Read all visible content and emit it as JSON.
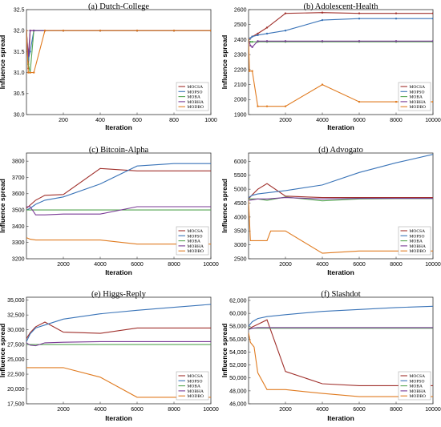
{
  "colors": {
    "MOCSA": "#a0302c",
    "MOPSO": "#3a74b8",
    "MOBA": "#55a552",
    "MOBHA": "#7a3b96",
    "MODBO": "#e07b20"
  },
  "chart_data": [
    {
      "type": "line",
      "title": "(a) Dutch-College",
      "xlabel": "Iteration",
      "ylabel": "Influence spread",
      "xlim": [
        0,
        1000
      ],
      "ylim": [
        30,
        32.5
      ],
      "xticks": [
        200,
        400,
        600,
        800,
        1000
      ],
      "yticks": [
        30.0,
        30.5,
        31.0,
        31.5,
        32.0,
        32.5
      ],
      "ytick_labels": [
        "30.0",
        "30.5",
        "31.0",
        "31.5",
        "32.0",
        "32.5"
      ],
      "markers": true,
      "legend": "bottom-right",
      "series": [
        {
          "name": "MOCSA",
          "x": [
            0,
            10,
            20,
            40,
            100,
            200,
            400,
            600,
            800,
            1000
          ],
          "y": [
            32,
            31.1,
            32,
            32,
            32,
            32,
            32,
            32,
            32,
            32
          ]
        },
        {
          "name": "MOPSO",
          "x": [
            0,
            10,
            20,
            40,
            100,
            200,
            400,
            600,
            800,
            1000
          ],
          "y": [
            32,
            31.3,
            31.5,
            32,
            32,
            32,
            32,
            32,
            32,
            32
          ]
        },
        {
          "name": "MOBA",
          "x": [
            0,
            10,
            20,
            40,
            100,
            200,
            400,
            600,
            800,
            1000
          ],
          "y": [
            32,
            31.2,
            31.0,
            32,
            32,
            32,
            32,
            32,
            32,
            32
          ]
        },
        {
          "name": "MOBHA",
          "x": [
            0,
            10,
            20,
            40,
            100,
            200,
            400,
            600,
            800,
            1000
          ],
          "y": [
            32,
            31.4,
            32,
            32,
            32,
            32,
            32,
            32,
            32,
            32
          ]
        },
        {
          "name": "MODBO",
          "x": [
            0,
            10,
            20,
            40,
            100,
            200,
            400,
            600,
            800,
            1000
          ],
          "y": [
            32,
            31.0,
            31.0,
            31.0,
            32,
            32,
            32,
            32,
            32,
            32
          ]
        }
      ]
    },
    {
      "type": "line",
      "title": "(b) Adolescent-Health",
      "xlabel": "Iteration",
      "ylabel": "Influence spread",
      "xlim": [
        0,
        10000
      ],
      "ylim": [
        1900,
        2600
      ],
      "xticks": [
        2000,
        4000,
        6000,
        8000,
        10000
      ],
      "yticks": [
        1900,
        2000,
        2100,
        2200,
        2300,
        2400,
        2500,
        2600
      ],
      "ytick_labels": [
        "1900",
        "2000",
        "2100",
        "2200",
        "2300",
        "2400",
        "2500",
        "2600"
      ],
      "markers": true,
      "legend": "bottom-right",
      "series": [
        {
          "name": "MOCSA",
          "x": [
            0,
            100,
            200,
            500,
            1000,
            2000,
            4000,
            6000,
            8000,
            10000
          ],
          "y": [
            2400,
            2410,
            2420,
            2440,
            2480,
            2575,
            2580,
            2575,
            2575,
            2575
          ]
        },
        {
          "name": "MOPSO",
          "x": [
            0,
            100,
            200,
            500,
            1000,
            2000,
            4000,
            6000,
            8000,
            10000
          ],
          "y": [
            2400,
            2410,
            2420,
            2430,
            2440,
            2460,
            2530,
            2540,
            2540,
            2540
          ]
        },
        {
          "name": "MOBA",
          "x": [
            0,
            100,
            200,
            500,
            1000,
            2000,
            4000,
            6000,
            8000,
            10000
          ],
          "y": [
            2390,
            2385,
            2385,
            2385,
            2385,
            2385,
            2385,
            2385,
            2385,
            2385
          ]
        },
        {
          "name": "MOBHA",
          "x": [
            0,
            100,
            200,
            500,
            1000,
            2000,
            4000,
            6000,
            8000,
            10000
          ],
          "y": [
            2400,
            2360,
            2350,
            2390,
            2390,
            2390,
            2390,
            2390,
            2390,
            2390
          ]
        },
        {
          "name": "MODBO",
          "x": [
            0,
            50,
            200,
            500,
            1000,
            2000,
            4000,
            6000,
            8000,
            10000
          ],
          "y": [
            2400,
            2190,
            2190,
            1955,
            1955,
            1955,
            2100,
            1985,
            1985,
            1985
          ]
        }
      ]
    },
    {
      "type": "line",
      "title": "(c) Bitcoin-Alpha",
      "xlabel": "Iteration",
      "ylabel": "Influence spread",
      "xlim": [
        0,
        10000
      ],
      "ylim": [
        3200,
        3850
      ],
      "xticks": [
        2000,
        4000,
        6000,
        8000,
        10000
      ],
      "yticks": [
        3200,
        3300,
        3400,
        3500,
        3600,
        3700,
        3800
      ],
      "ytick_labels": [
        "3200",
        "3300",
        "3400",
        "3500",
        "3600",
        "3700",
        "3800"
      ],
      "markers": false,
      "legend": "bottom-right",
      "series": [
        {
          "name": "MOCSA",
          "x": [
            0,
            200,
            500,
            1000,
            2000,
            4000,
            6000,
            8000,
            10000
          ],
          "y": [
            3510,
            3530,
            3560,
            3590,
            3595,
            3755,
            3740,
            3740,
            3740
          ]
        },
        {
          "name": "MOPSO",
          "x": [
            0,
            200,
            500,
            1000,
            2000,
            4000,
            6000,
            8000,
            10000
          ],
          "y": [
            3500,
            3510,
            3535,
            3560,
            3580,
            3660,
            3770,
            3785,
            3785
          ]
        },
        {
          "name": "MOBA",
          "x": [
            0,
            200,
            500,
            1000,
            2000,
            4000,
            6000,
            8000,
            10000
          ],
          "y": [
            3500,
            3500,
            3500,
            3500,
            3500,
            3500,
            3500,
            3500,
            3500
          ]
        },
        {
          "name": "MOBHA",
          "x": [
            0,
            200,
            500,
            1000,
            2000,
            4000,
            6000,
            8000,
            10000
          ],
          "y": [
            3520,
            3520,
            3470,
            3470,
            3475,
            3475,
            3520,
            3520,
            3520
          ]
        },
        {
          "name": "MODBO",
          "x": [
            0,
            200,
            500,
            1000,
            2000,
            4000,
            6000,
            8000,
            10000
          ],
          "y": [
            3330,
            3320,
            3315,
            3315,
            3315,
            3315,
            3290,
            3290,
            3290
          ]
        }
      ]
    },
    {
      "type": "line",
      "title": "(d) Advogato",
      "xlabel": "Iteration",
      "ylabel": "Influence spread",
      "xlim": [
        0,
        10000
      ],
      "ylim": [
        2500,
        6300
      ],
      "xticks": [
        2000,
        4000,
        6000,
        8000,
        10000
      ],
      "yticks": [
        2500,
        3000,
        3500,
        4000,
        4500,
        5000,
        5500,
        6000
      ],
      "ytick_labels": [
        "2500",
        "3000",
        "3500",
        "4000",
        "4500",
        "5000",
        "5500",
        "6000"
      ],
      "markers": false,
      "legend": "bottom-right",
      "series": [
        {
          "name": "MOCSA",
          "x": [
            0,
            200,
            500,
            1000,
            2000,
            4000,
            6000,
            8000,
            10000
          ],
          "y": [
            4650,
            4800,
            5000,
            5200,
            4750,
            4700,
            4700,
            4700,
            4700
          ]
        },
        {
          "name": "MOPSO",
          "x": [
            0,
            200,
            500,
            1000,
            2000,
            4000,
            6000,
            8000,
            10000
          ],
          "y": [
            4700,
            4780,
            4830,
            4870,
            4950,
            5150,
            5600,
            5950,
            6250
          ]
        },
        {
          "name": "MOBA",
          "x": [
            0,
            200,
            500,
            1000,
            2000,
            4000,
            6000,
            8000,
            10000
          ],
          "y": [
            4650,
            4650,
            4650,
            4600,
            4720,
            4580,
            4650,
            4660,
            4660
          ]
        },
        {
          "name": "MOBHA",
          "x": [
            0,
            200,
            500,
            1000,
            2000,
            4000,
            6000,
            8000,
            10000
          ],
          "y": [
            4600,
            4620,
            4650,
            4650,
            4700,
            4650,
            4670,
            4670,
            4670
          ]
        },
        {
          "name": "MODBO",
          "x": [
            0,
            100,
            200,
            1000,
            1200,
            2000,
            4000,
            6000,
            8000,
            10000
          ],
          "y": [
            4600,
            3150,
            3150,
            3150,
            3500,
            3500,
            2700,
            2780,
            2780,
            2780
          ]
        }
      ]
    },
    {
      "type": "line",
      "title": "(e) Higgs-Reply",
      "xlabel": "Iteration",
      "ylabel": "Influence spread",
      "xlim": [
        0,
        10000
      ],
      "ylim": [
        17500,
        35500
      ],
      "xticks": [
        2000,
        4000,
        6000,
        8000,
        10000
      ],
      "yticks": [
        17500,
        20000,
        22500,
        25000,
        27500,
        30000,
        32500,
        35000
      ],
      "ytick_labels": [
        "17,500",
        "20,000",
        "22,500",
        "25,000",
        "27,500",
        "30,000",
        "32,500",
        "35,000"
      ],
      "markers": false,
      "legend": "bottom-right",
      "series": [
        {
          "name": "MOCSA",
          "x": [
            0,
            200,
            500,
            1000,
            2000,
            4000,
            6000,
            8000,
            10000
          ],
          "y": [
            28500,
            29500,
            30500,
            31300,
            29600,
            29400,
            30300,
            30300,
            30300
          ]
        },
        {
          "name": "MOPSO",
          "x": [
            0,
            200,
            500,
            1000,
            2000,
            4000,
            6000,
            8000,
            10000
          ],
          "y": [
            28000,
            29300,
            30300,
            30800,
            31800,
            32700,
            33300,
            33800,
            34300
          ]
        },
        {
          "name": "MOBA",
          "x": [
            0,
            200,
            500,
            1000,
            2000,
            4000,
            6000,
            8000,
            10000
          ],
          "y": [
            27500,
            27500,
            27500,
            27500,
            27500,
            27500,
            27500,
            27500,
            27500
          ]
        },
        {
          "name": "MOBHA",
          "x": [
            0,
            200,
            500,
            1000,
            2000,
            4000,
            6000,
            8000,
            10000
          ],
          "y": [
            27800,
            27400,
            27300,
            27800,
            27900,
            28000,
            28000,
            28000,
            28000
          ]
        },
        {
          "name": "MODBO",
          "x": [
            0,
            200,
            500,
            1000,
            2000,
            4000,
            6000,
            8000,
            10000
          ],
          "y": [
            23600,
            23600,
            23600,
            23600,
            23600,
            22000,
            18600,
            18600,
            18600
          ]
        }
      ]
    },
    {
      "type": "line",
      "title": "(f) Slashdot",
      "xlabel": "Iteration",
      "ylabel": "Influence spread",
      "xlim": [
        0,
        10000
      ],
      "ylim": [
        46000,
        62500
      ],
      "xticks": [
        2000,
        4000,
        6000,
        8000,
        10000
      ],
      "yticks": [
        46000,
        48000,
        50000,
        52000,
        54000,
        56000,
        58000,
        60000,
        62000
      ],
      "ytick_labels": [
        "46,000",
        "48,000",
        "50,000",
        "52,000",
        "54,000",
        "56,000",
        "58,000",
        "60,000",
        "62,000"
      ],
      "markers": false,
      "legend": "bottom-right",
      "series": [
        {
          "name": "MOCSA",
          "x": [
            0,
            200,
            500,
            1000,
            2000,
            4000,
            6000,
            8000,
            10000
          ],
          "y": [
            57600,
            57900,
            58300,
            59000,
            51000,
            49100,
            48800,
            48800,
            48800
          ]
        },
        {
          "name": "MOPSO",
          "x": [
            0,
            200,
            500,
            1000,
            2000,
            4000,
            6000,
            8000,
            10000
          ],
          "y": [
            58000,
            58700,
            59200,
            59500,
            59800,
            60300,
            60600,
            60900,
            61100
          ]
        },
        {
          "name": "MOBA",
          "x": [
            0,
            200,
            500,
            1000,
            2000,
            4000,
            6000,
            8000,
            10000
          ],
          "y": [
            57700,
            57700,
            57700,
            57700,
            57700,
            57700,
            57700,
            57700,
            57700
          ]
        },
        {
          "name": "MOBHA",
          "x": [
            0,
            200,
            500,
            1000,
            2000,
            4000,
            6000,
            8000,
            10000
          ],
          "y": [
            57500,
            57700,
            57800,
            57800,
            57800,
            57800,
            57800,
            57800,
            57800
          ]
        },
        {
          "name": "MODBO",
          "x": [
            0,
            100,
            300,
            500,
            1000,
            2000,
            4000,
            6000,
            8000,
            10000
          ],
          "y": [
            57000,
            55500,
            54800,
            50800,
            48200,
            48200,
            47600,
            47100,
            47100,
            47100
          ]
        }
      ]
    }
  ]
}
